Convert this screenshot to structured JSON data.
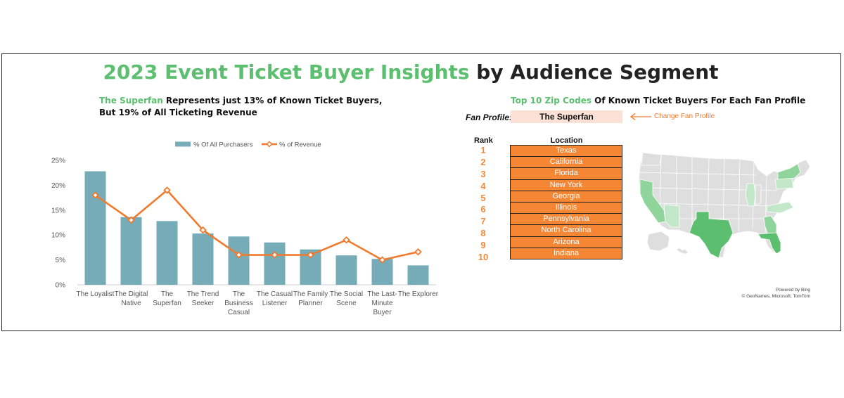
{
  "header": {
    "title_accent": "2023 Event Ticket Buyer Insights",
    "title_rest": " by Audience Segment"
  },
  "left_panel": {
    "subtitle_accent": "The Superfan",
    "subtitle_rest": " Represents just  13% of Known Ticket Buyers, But 19% of All Ticketing Revenue"
  },
  "chart_data": {
    "type": "bar",
    "categories": [
      [
        "The Loyalist"
      ],
      [
        "The Digital",
        "Native"
      ],
      [
        "The",
        "Superfan"
      ],
      [
        "The Trend",
        "Seeker"
      ],
      [
        "The",
        "Business",
        "Casual"
      ],
      [
        "The Casual",
        "Listener"
      ],
      [
        "The Family",
        "Planner"
      ],
      [
        "The Social",
        "Scene"
      ],
      [
        "The Last-",
        "Minute",
        "Buyer"
      ],
      [
        "The Explorer"
      ]
    ],
    "series": [
      {
        "name": "% Of All Purchasers",
        "type": "bar",
        "color": "#75acb8",
        "values": [
          22.8,
          13.6,
          12.8,
          10.3,
          9.7,
          8.5,
          7.1,
          5.9,
          5.2,
          3.9
        ]
      },
      {
        "name": "% of Revenue",
        "type": "line",
        "color": "#f07a2d",
        "values": [
          18,
          13,
          19,
          11,
          6,
          6,
          6,
          9,
          5,
          6.6
        ]
      }
    ],
    "y_ticks": [
      "0%",
      "5%",
      "10%",
      "15%",
      "20%",
      "25%"
    ],
    "ylim": [
      0,
      25
    ],
    "legend_position": "top",
    "grid": false
  },
  "right_panel": {
    "title_accent": "Top 10 Zip Codes",
    "title_rest": " Of Known Ticket Buyers For Each Fan Profile",
    "fan_profile_label": "Fan Profile:",
    "fan_profile_value": "The Superfan",
    "change_label": "Change Fan Profile",
    "rank_header": "Rank",
    "location_header": "Location",
    "rows": [
      {
        "rank": "1",
        "location": "Texas"
      },
      {
        "rank": "2",
        "location": "California"
      },
      {
        "rank": "3",
        "location": "Florida"
      },
      {
        "rank": "4",
        "location": "New York"
      },
      {
        "rank": "5",
        "location": "Georgia"
      },
      {
        "rank": "6",
        "location": "Illinois"
      },
      {
        "rank": "7",
        "location": "Pennsylvania"
      },
      {
        "rank": "8",
        "location": "North Carolina"
      },
      {
        "rank": "9",
        "location": "Arizona"
      },
      {
        "rank": "10",
        "location": "Indiana"
      }
    ],
    "map": {
      "base_color": "#dedede",
      "colors": {
        "strong": "#5cbf6f",
        "medium": "#8fd49b",
        "light": "#c2e8c9"
      },
      "powered_by": "Powered by Bing",
      "attribution": "© GeoNames, Microsoft, TomTom"
    }
  }
}
